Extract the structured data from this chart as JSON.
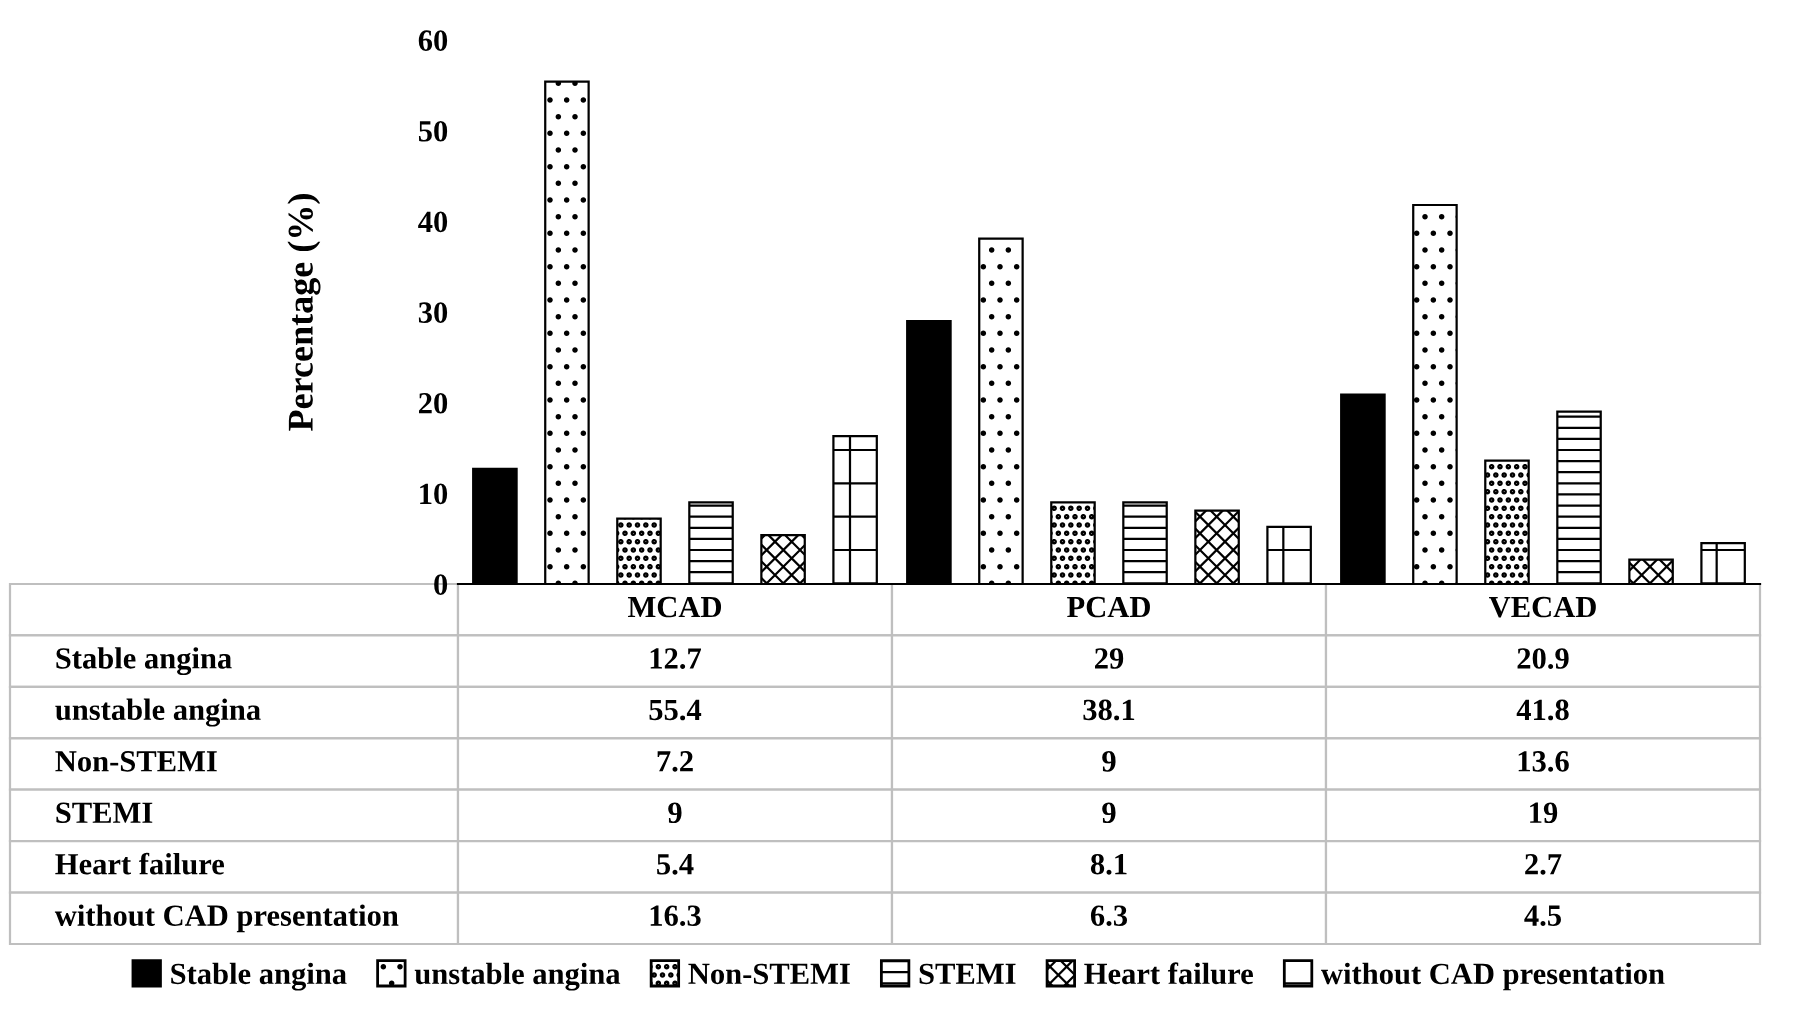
{
  "chart_data": {
    "type": "bar",
    "ylabel": "Percentage (%)",
    "categories": [
      "MCAD",
      "PCAD",
      "VECAD"
    ],
    "series": [
      {
        "name": "Stable angina",
        "color": "#000000",
        "values": [
          12.7,
          29,
          20.9
        ]
      },
      {
        "name": "unstable angina",
        "color": "#ffffff",
        "values": [
          55.4,
          38.1,
          41.8
        ]
      },
      {
        "name": "Non-STEMI",
        "color": "#ffffff",
        "values": [
          7.2,
          9,
          13.6
        ]
      },
      {
        "name": "STEMI",
        "color": "#ffffff",
        "values": [
          9,
          9,
          19
        ]
      },
      {
        "name": "Heart failure",
        "color": "#ffffff",
        "values": [
          5.4,
          8.1,
          2.7
        ]
      },
      {
        "name": "without CAD presentation",
        "color": "#ffffff",
        "values": [
          16.3,
          6.3,
          4.5
        ]
      }
    ],
    "ylim": [
      0,
      60
    ],
    "yticks": [
      0,
      10,
      20,
      30,
      40,
      50,
      60
    ],
    "grid": false,
    "legend": "bottom",
    "data_labels": true
  }
}
